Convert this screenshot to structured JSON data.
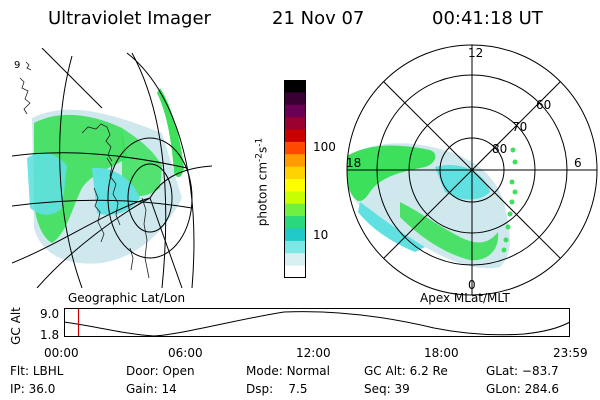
{
  "header": {
    "instrument": "Ultraviolet Imager",
    "date": "21 Nov 07",
    "time": "00:41:18 UT"
  },
  "colors": {
    "land": "#202020",
    "aurora_green": "#3ce05a",
    "aurora_cyan": "#60e0e0",
    "aurora_light": "#cfe8ee",
    "grid": "#000000",
    "marker": "#cc0000"
  },
  "geo_panel": {
    "label": "Geographic Lat/Lon",
    "corner_mark": "9"
  },
  "colorbar": {
    "ylabel_main": "photon cm",
    "ylabel_sup1": "-2",
    "ylabel_mid": "s",
    "ylabel_sup2": "-1",
    "ticks": [
      "100",
      "10"
    ],
    "colors": [
      "#000000",
      "#3a0033",
      "#6a0055",
      "#9a0030",
      "#c80000",
      "#ff4a00",
      "#ff9a00",
      "#ffd200",
      "#ffff00",
      "#c8ff00",
      "#70f040",
      "#28d87a",
      "#20c8c8",
      "#7fe6e6",
      "#d8f0f2",
      "#ffffff"
    ]
  },
  "polar_panel": {
    "label": "Apex MLat/MLT",
    "mlt_labels": {
      "top": "12",
      "right": "6",
      "bottom": "0",
      "left": "18"
    },
    "lat_labels": [
      "80",
      "70",
      "60"
    ]
  },
  "timeline": {
    "ylabel": "GC Alt",
    "yticks": [
      "9.0",
      "1.8"
    ],
    "xticks": [
      "00:00",
      "06:00",
      "12:00",
      "18:00",
      "23:59"
    ],
    "current_time_hours": 0.69
  },
  "info": {
    "col1": [
      {
        "label": "Flt:",
        "value": "LBHL"
      },
      {
        "label": "IP:",
        "value": "36.0"
      }
    ],
    "col2": [
      {
        "label": "Door:",
        "value": "Open"
      },
      {
        "label": "Gain:",
        "value": "14"
      }
    ],
    "col3": [
      {
        "label": "Mode:",
        "value": "Normal"
      },
      {
        "label": "Dsp:",
        "value": "7.5"
      }
    ],
    "col4": [
      {
        "label": "GC Alt:",
        "value": "6.2 Re"
      },
      {
        "label": "Seq:",
        "value": "39"
      }
    ],
    "col5": [
      {
        "label": "GLat:",
        "value": "−83.7"
      },
      {
        "label": "GLon:",
        "value": "284.6"
      }
    ]
  }
}
